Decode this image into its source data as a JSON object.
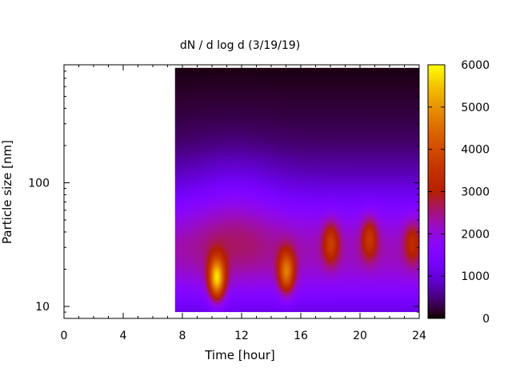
{
  "chart_data": {
    "type": "heatmap",
    "title": "dN / d log d (3/19/19)",
    "xlabel": "Time [hour]",
    "ylabel": "Particle size [nm]",
    "xlim": [
      0,
      24
    ],
    "ylim": [
      8,
      900
    ],
    "y_scale": "log",
    "x_ticks": [
      "0",
      "4",
      "8",
      "12",
      "16",
      "20",
      "24"
    ],
    "y_ticks": [
      "10",
      "100"
    ],
    "data_x_range": [
      7.5,
      24
    ],
    "data_y_range": [
      9,
      850
    ],
    "colorbar": {
      "range": [
        0,
        6000
      ],
      "ticks": [
        "0",
        "1000",
        "2000",
        "3000",
        "4000",
        "5000",
        "6000"
      ],
      "palette": "gnuplot-default (black-purple-red-orange-yellow)"
    },
    "features": [
      {
        "time": 10.3,
        "size_nm": 17,
        "value": 5200
      },
      {
        "time": 15.0,
        "size_nm": 19,
        "value": 4200
      },
      {
        "time": 18.0,
        "size_nm": 33,
        "value": 3100
      },
      {
        "time": 20.6,
        "size_nm": 36,
        "value": 3000
      },
      {
        "time": 23.5,
        "size_nm": 33,
        "value": 2700
      }
    ],
    "background_level": 1800,
    "top_level": 200,
    "grid": false
  }
}
